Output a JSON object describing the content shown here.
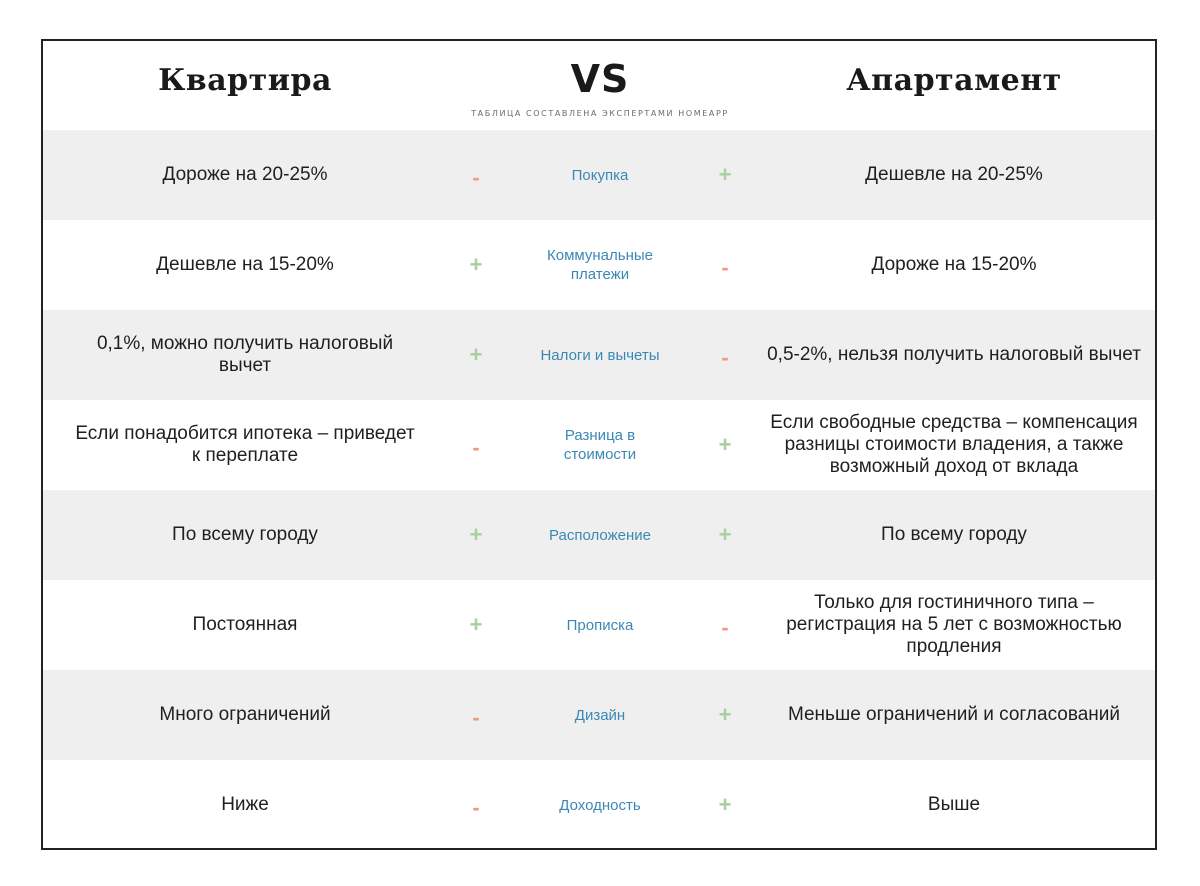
{
  "header": {
    "left_title": "Квартира",
    "center_title": "VS",
    "subtitle": "ТАБЛИЦА СОСТАВЛЕНА ЭКСПЕРТАМИ НОМЕАРР",
    "right_title": "Апартамент"
  },
  "colors": {
    "plus": "#a7cf9c",
    "minus": "#ef9a8a",
    "criterion": "#3b88b5",
    "row_shade": "#efefef"
  },
  "rows": [
    {
      "left": "Дороже на 20-25%",
      "left_sign": "-",
      "criterion": "Покупка",
      "right_sign": "+",
      "right": "Дешевле на 20-25%"
    },
    {
      "left": "Дешевле на 15-20%",
      "left_sign": "+",
      "criterion": "Коммунальные платежи",
      "right_sign": "-",
      "right": "Дороже на 15-20%"
    },
    {
      "left": "0,1%, можно получить налоговый вычет",
      "left_sign": "+",
      "criterion": "Налоги и вычеты",
      "right_sign": "-",
      "right": "0,5-2%, нельзя получить налоговый вычет"
    },
    {
      "left": "Если понадобится ипотека – приведет к переплате",
      "left_sign": "-",
      "criterion": "Разница в стоимости",
      "right_sign": "+",
      "right": "Если свободные средства – компенсация разницы стоимости владения, а также возможный доход от вклада"
    },
    {
      "left": "По всему городу",
      "left_sign": "+",
      "criterion": "Расположение",
      "right_sign": "+",
      "right": "По всему городу"
    },
    {
      "left": "Постоянная",
      "left_sign": "+",
      "criterion": "Прописка",
      "right_sign": "-",
      "right": "Только для гостиничного типа – регистрация на 5 лет с возможностью продления"
    },
    {
      "left": "Много ограничений",
      "left_sign": "-",
      "criterion": "Дизайн",
      "right_sign": "+",
      "right": "Меньше ограничений и согласований"
    },
    {
      "left": "Ниже",
      "left_sign": "-",
      "criterion": "Доходность",
      "right_sign": "+",
      "right": "Выше"
    }
  ]
}
